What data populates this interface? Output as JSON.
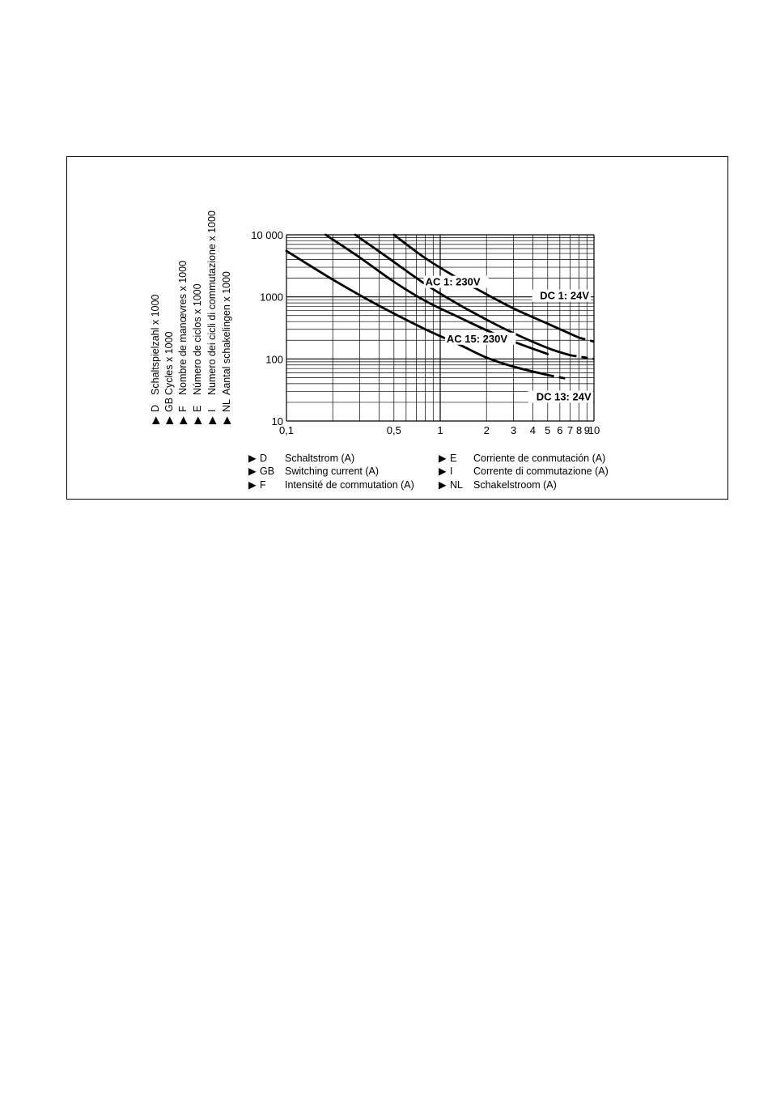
{
  "chart_data": {
    "type": "line",
    "x_scale": "log",
    "y_scale": "log",
    "xlim": [
      0.1,
      10
    ],
    "ylim": [
      10,
      10000
    ],
    "grid": true,
    "x_ticks": [
      {
        "v": 0.1,
        "label": "0,1"
      },
      {
        "v": 0.5,
        "label": "0,5"
      },
      {
        "v": 1,
        "label": "1"
      },
      {
        "v": 2,
        "label": "2"
      },
      {
        "v": 3,
        "label": "3"
      },
      {
        "v": 4,
        "label": "4"
      },
      {
        "v": 5,
        "label": "5"
      },
      {
        "v": 6,
        "label": "6"
      },
      {
        "v": 7,
        "label": "7"
      },
      {
        "v": 8,
        "label": "8"
      },
      {
        "v": 9,
        "label": "9"
      },
      {
        "v": 10,
        "label": "10"
      }
    ],
    "y_ticks": [
      {
        "v": 10,
        "label": "10"
      },
      {
        "v": 100,
        "label": "100"
      },
      {
        "v": 1000,
        "label": "1000"
      },
      {
        "v": 10000,
        "label": "10 000"
      }
    ],
    "ylabel_lines": [
      {
        "marker": "▶",
        "code": "D",
        "text": "Schaltspielzahl x 1000"
      },
      {
        "marker": "▶",
        "code": "GB",
        "text": "Cycles x 1000"
      },
      {
        "marker": "▶",
        "code": "F",
        "text": "Nombre de manœvres x 1000"
      },
      {
        "marker": "▶",
        "code": "E",
        "text": "Número de ciclos x 1000"
      },
      {
        "marker": "▶",
        "code": "I",
        "text": "Numero dei cicli di commutazione x 1000"
      },
      {
        "marker": "▶",
        "code": "NL",
        "text": "Aantal schakelingen x 1000"
      }
    ],
    "xlabel_lines": [
      {
        "marker": "▶",
        "code": "D",
        "text": "Schaltstrom (A)"
      },
      {
        "marker": "▶",
        "code": "GB",
        "text": "Switching current (A)"
      },
      {
        "marker": "▶",
        "code": "F",
        "text": "Intensité de commutation (A)"
      },
      {
        "marker": "▶",
        "code": "E",
        "text": "Corriente de conmutación (A)"
      },
      {
        "marker": "▶",
        "code": "I",
        "text": "Corrente di commutazione (A)"
      },
      {
        "marker": "▶",
        "code": "NL",
        "text": "Schakelstroom (A)"
      }
    ],
    "series": [
      {
        "name": "AC 1: 230V",
        "x": [
          0.5,
          0.8,
          1.3,
          2,
          3,
          5,
          8,
          10
        ],
        "y": [
          10000,
          4200,
          2000,
          1100,
          650,
          370,
          220,
          190
        ],
        "dashed_from_x": 8
      },
      {
        "name": "DC 1: 24V",
        "x": [
          0.28,
          0.45,
          0.8,
          1.3,
          2,
          3,
          5,
          7,
          10
        ],
        "y": [
          10000,
          4400,
          1600,
          770,
          430,
          260,
          150,
          115,
          100
        ],
        "dashed_from_x": 7
      },
      {
        "name": "AC 15: 230V",
        "x": [
          0.18,
          0.3,
          0.5,
          0.8,
          1.3,
          2,
          3,
          5
        ],
        "y": [
          10000,
          4300,
          1750,
          860,
          480,
          290,
          190,
          120
        ]
      },
      {
        "name": "DC 13: 24V",
        "x": [
          0.1,
          0.2,
          0.4,
          0.8,
          1.3,
          2,
          3,
          5,
          7
        ],
        "y": [
          5500,
          1900,
          720,
          300,
          175,
          105,
          75,
          55,
          47
        ],
        "dashed_from_x": 5
      }
    ]
  }
}
